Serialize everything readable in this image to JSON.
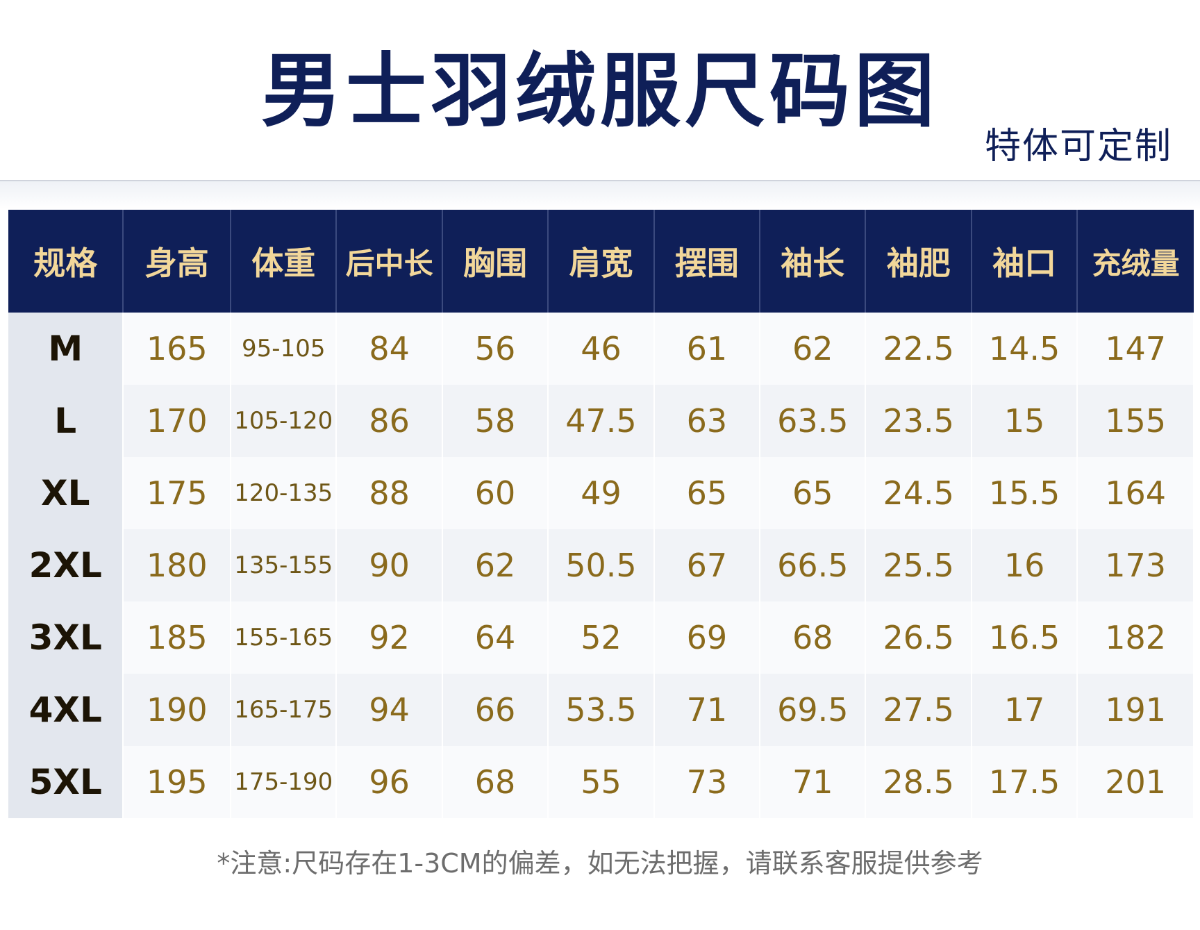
{
  "title": "男士羽绒服尺码图",
  "subtitle": "特体可定制",
  "table": {
    "headers": [
      "规格",
      "身高",
      "体重",
      "后中长",
      "胸围",
      "肩宽",
      "摆围",
      "袖长",
      "袖肥",
      "袖口",
      "充绒量"
    ],
    "rows": [
      [
        "M",
        "165",
        "95-105",
        "84",
        "56",
        "46",
        "61",
        "62",
        "22.5",
        "14.5",
        "147"
      ],
      [
        "L",
        "170",
        "105-120",
        "86",
        "58",
        "47.5",
        "63",
        "63.5",
        "23.5",
        "15",
        "155"
      ],
      [
        "XL",
        "175",
        "120-135",
        "88",
        "60",
        "49",
        "65",
        "65",
        "24.5",
        "15.5",
        "164"
      ],
      [
        "2XL",
        "180",
        "135-155",
        "90",
        "62",
        "50.5",
        "67",
        "66.5",
        "25.5",
        "16",
        "173"
      ],
      [
        "3XL",
        "185",
        "155-165",
        "92",
        "64",
        "52",
        "69",
        "68",
        "26.5",
        "16.5",
        "182"
      ],
      [
        "4XL",
        "190",
        "165-175",
        "94",
        "66",
        "53.5",
        "71",
        "69.5",
        "27.5",
        "17",
        "191"
      ],
      [
        "5XL",
        "195",
        "175-190",
        "96",
        "68",
        "55",
        "73",
        "71",
        "28.5",
        "17.5",
        "201"
      ]
    ]
  },
  "note": "*注意:尺码存在1-3CM的偏差，如无法把握，请联系客服提供参考",
  "colors": {
    "header_bg": "#0f1f58",
    "header_text": "#f2d79a",
    "value_text": "#8a6a1c",
    "title_text": "#0f1f58"
  }
}
